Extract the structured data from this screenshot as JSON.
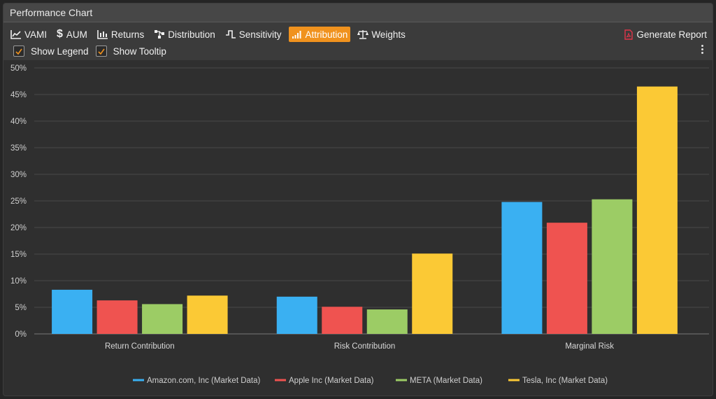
{
  "window": {
    "title": "Performance Chart"
  },
  "toolbar": {
    "buttons": [
      {
        "label": "VAMI",
        "icon": "line-chart-icon"
      },
      {
        "label": "AUM",
        "icon": "dollar-icon"
      },
      {
        "label": "Returns",
        "icon": "bar-chart-icon"
      },
      {
        "label": "Distribution",
        "icon": "distribution-icon"
      },
      {
        "label": "Sensitivity",
        "icon": "sensitivity-icon"
      },
      {
        "label": "Attribution",
        "icon": "signal-bars-icon",
        "active": true
      },
      {
        "label": "Weights",
        "icon": "scale-icon"
      }
    ],
    "report_label": "Generate Report",
    "report_icon": "pdf-file-icon",
    "options": [
      {
        "label": "Show Legend",
        "checked": true
      },
      {
        "label": "Show Tooltip",
        "checked": true
      }
    ],
    "menu_icon": "more-vertical-icon"
  },
  "colors": {
    "accent": "#f0921e",
    "checkmark": "#f0921e",
    "pdf_icon": "#e0344a"
  },
  "chart_data": {
    "type": "bar",
    "categories": [
      "Return Contribution",
      "Risk Contribution",
      "Marginal Risk"
    ],
    "ylim": [
      0,
      50
    ],
    "yticks": [
      0,
      5,
      10,
      15,
      20,
      25,
      30,
      35,
      40,
      45,
      50
    ],
    "ytick_labels": [
      "0%",
      "5%",
      "10%",
      "15%",
      "20%",
      "25%",
      "30%",
      "35%",
      "40%",
      "45%",
      "50%"
    ],
    "grid": true,
    "legend_position": "bottom",
    "series": [
      {
        "name": "Amazon.com, Inc (Market Data)",
        "color": "#3ab0f2",
        "values": [
          8.3,
          7.0,
          24.8
        ]
      },
      {
        "name": "Apple Inc (Market Data)",
        "color": "#ef5350",
        "values": [
          6.3,
          5.1,
          20.9
        ]
      },
      {
        "name": "META (Market Data)",
        "color": "#9ccc65",
        "values": [
          5.6,
          4.6,
          25.3
        ]
      },
      {
        "name": "Tesla, Inc (Market Data)",
        "color": "#fbc935",
        "values": [
          7.2,
          15.1,
          46.5
        ]
      }
    ]
  }
}
